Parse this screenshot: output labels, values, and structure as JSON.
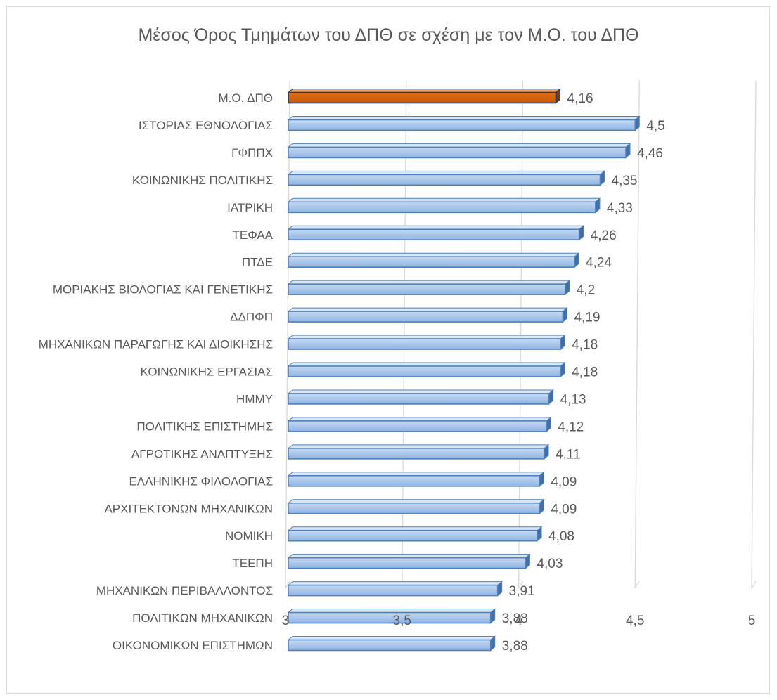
{
  "chart_data": {
    "type": "bar",
    "orientation": "horizontal",
    "title": "Μέσος Όρος Τμημάτων του ΔΠΘ σε σχέση με τον Μ.Ο. του ΔΠΘ",
    "xlim": [
      3,
      5
    ],
    "ticks": [
      3,
      3.5,
      4,
      4.5,
      5
    ],
    "tick_labels": [
      "3",
      "3,5",
      "4",
      "4,5",
      "5"
    ],
    "grid": true,
    "legend": "none",
    "categories": [
      "Μ.Ο. ΔΠΘ",
      "ΙΣΤΟΡΙΑΣ ΕΘΝΟΛΟΓΙΑΣ",
      "ΓΦΠΠΧ",
      "ΚΟΙΝΩΝΙΚΗΣ ΠΟΛΙΤΙΚΗΣ",
      "ΙΑΤΡΙΚΗ",
      "ΤΕΦΑΑ",
      "ΠΤΔΕ",
      "ΜΟΡΙΑΚΗΣ ΒΙΟΛΟΓΙΑΣ ΚΑΙ ΓΕΝΕΤΙΚΗΣ",
      "ΔΔΠΦΠ",
      "ΜΗΧΑΝΙΚΩΝ ΠΑΡΑΓΩΓΗΣ ΚΑΙ ΔΙΟΙΚΗΣΗΣ",
      "ΚΟΙΝΩΝΙΚΗΣ ΕΡΓΑΣΙΑΣ",
      "ΗΜΜΥ",
      "ΠΟΛΙΤΙΚΗΣ ΕΠΙΣΤΗΜΗΣ",
      "ΑΓΡΟΤΙΚΗΣ ΑΝΑΠΤΥΞΗΣ",
      "ΕΛΛΗΝΙΚΗΣ ΦΙΛΟΛΟΓΙΑΣ",
      "ΑΡΧΙΤΕΚΤΟΝΩΝ ΜΗΧΑΝΙΚΩΝ",
      "ΝΟΜΙΚΗ",
      "ΤΕΕΠΗ",
      "ΜΗΧΑΝΙΚΩΝ ΠΕΡΙΒΑΛΛΟΝΤΟΣ",
      "ΠΟΛΙΤΙΚΩΝ ΜΗΧΑΝΙΚΩΝ",
      "ΟΙΚΟΝΟΜΙΚΩΝ ΕΠΙΣΤΗΜΩΝ"
    ],
    "values": [
      4.16,
      4.5,
      4.46,
      4.35,
      4.33,
      4.26,
      4.24,
      4.2,
      4.19,
      4.18,
      4.18,
      4.13,
      4.12,
      4.11,
      4.09,
      4.09,
      4.08,
      4.03,
      3.91,
      3.88,
      3.88
    ],
    "value_labels": [
      "4,16",
      "4,5",
      "4,46",
      "4,35",
      "4,33",
      "4,26",
      "4,24",
      "4,2",
      "4,19",
      "4,18",
      "4,18",
      "4,13",
      "4,12",
      "4,11",
      "4,09",
      "4,09",
      "4,08",
      "4,03",
      "3,91",
      "3,88",
      "3,88"
    ],
    "highlight_index": 0,
    "colors": {
      "bar_fill_top": "#c6d9f1",
      "bar_fill_bottom": "#8fb4e3",
      "bar_stroke": "#4f81bd",
      "highlight_fill_top": "#e46c0a",
      "highlight_fill_bottom": "#c55a11",
      "highlight_stroke": "#1f3864",
      "grid": "#d9d9d9",
      "text": "#595959"
    }
  }
}
